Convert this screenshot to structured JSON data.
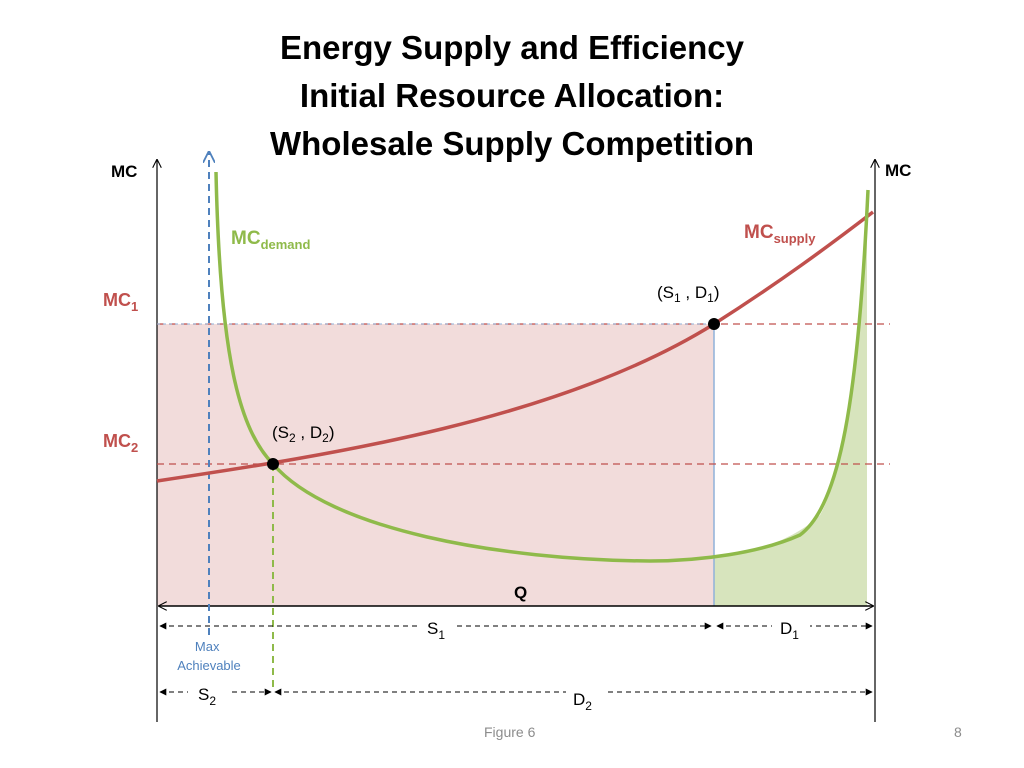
{
  "title": {
    "line1": "Energy Supply and Efficiency",
    "line2": "Initial Resource Allocation:",
    "line3": "Wholesale Supply Competition"
  },
  "axes": {
    "left_label": "MC",
    "right_label": "MC",
    "x_label": "Q"
  },
  "levels": {
    "mc1": {
      "base": "MC",
      "sub": "1"
    },
    "mc2": {
      "base": "MC",
      "sub": "2"
    }
  },
  "curves": {
    "demand": {
      "base": "MC",
      "sub": "demand"
    },
    "supply": {
      "base": "MC",
      "sub": "supply"
    }
  },
  "points": {
    "p1": {
      "a": "S",
      "a_sub": "1",
      "sep": " , ",
      "b": "D",
      "b_sub": "1"
    },
    "p2": {
      "a": "S",
      "a_sub": "2",
      "sep": " , ",
      "b": "D",
      "b_sub": "2"
    }
  },
  "max_achievable": {
    "line1": "Max",
    "line2": "Achievable"
  },
  "segments": {
    "s1": {
      "base": "S",
      "sub": "1"
    },
    "d1": {
      "base": "D",
      "sub": "1"
    },
    "s2": {
      "base": "S",
      "sub": "2"
    },
    "d2": {
      "base": "D",
      "sub": "2"
    }
  },
  "footer": {
    "caption": "Figure 6",
    "page": "8"
  },
  "colors": {
    "supply": "#c0504d",
    "demand": "#8fba4a",
    "max_line": "#4f81bd",
    "pink_fill": "#f2dcdb",
    "green_fill": "#d7e4bd"
  }
}
